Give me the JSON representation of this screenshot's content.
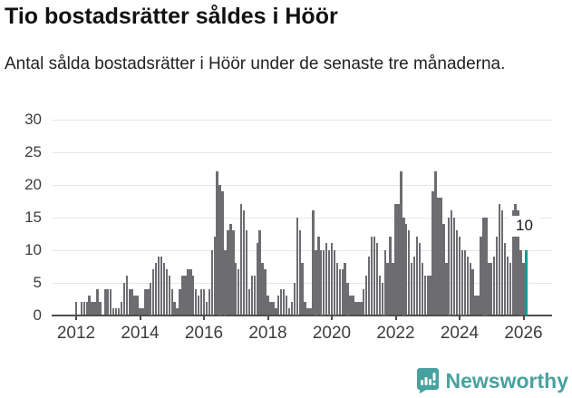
{
  "header": {
    "title": "Tio bostadsrätter såldes i Höör",
    "subtitle": "Antal sålda bostadsrätter i Höör under de senaste tre månaderna."
  },
  "annotation": {
    "label": "10"
  },
  "logo": {
    "text": "Newsworthy",
    "color": "#47a29f",
    "icon": "newsworthy-speech-bubble-chart-icon"
  },
  "chart_data": {
    "type": "bar",
    "title": "Tio bostadsrätter såldes i Höör",
    "ylabel": "Antal sålda bostadsrätter",
    "x_start_month": "2012-01",
    "x_end_month": "2026-02",
    "x_tick_labels": [
      "2012",
      "2014",
      "2016",
      "2018",
      "2020",
      "2022",
      "2024",
      "2026"
    ],
    "y_tick_labels": [
      0,
      5,
      10,
      15,
      20,
      25,
      30
    ],
    "ylim": [
      0,
      30
    ],
    "grid": true,
    "legend": "none",
    "bar_color": "#6d6d71",
    "highlight_color": "#149a94",
    "highlight_last_bar": true,
    "highlight_value_label": "10",
    "values": [
      2,
      0,
      2,
      2,
      2,
      3,
      2,
      2,
      4,
      2,
      0,
      4,
      4,
      4,
      1,
      1,
      1,
      2,
      5,
      6,
      4,
      4,
      3,
      3,
      1,
      1,
      4,
      4,
      5,
      7,
      8,
      9,
      9,
      8,
      7,
      6,
      4,
      2,
      1,
      4,
      6,
      6,
      7,
      7,
      6,
      4,
      3,
      4,
      4,
      2,
      4,
      10,
      12,
      22,
      20,
      19,
      10,
      13,
      14,
      13,
      8,
      7,
      17,
      16,
      13,
      4,
      6,
      6,
      11,
      13,
      8,
      7,
      3,
      2,
      2,
      1,
      3,
      4,
      4,
      3,
      1,
      2,
      5,
      15,
      13,
      8,
      2,
      1,
      1,
      16,
      10,
      12,
      10,
      10,
      11,
      10,
      11,
      10,
      8,
      7,
      7,
      8,
      5,
      3,
      3,
      2,
      2,
      2,
      4,
      6,
      9,
      12,
      12,
      11,
      6,
      5,
      10,
      8,
      12,
      8,
      17,
      17,
      22,
      15,
      14,
      13,
      8,
      9,
      12,
      11,
      8,
      6,
      6,
      6,
      19,
      22,
      18,
      18,
      14,
      8,
      15,
      16,
      15,
      13,
      12,
      10,
      10,
      9,
      8,
      7,
      3,
      3,
      12,
      15,
      15,
      8,
      8,
      9,
      12,
      17,
      16,
      11,
      9,
      8,
      16,
      17,
      16,
      10,
      8,
      10
    ]
  }
}
